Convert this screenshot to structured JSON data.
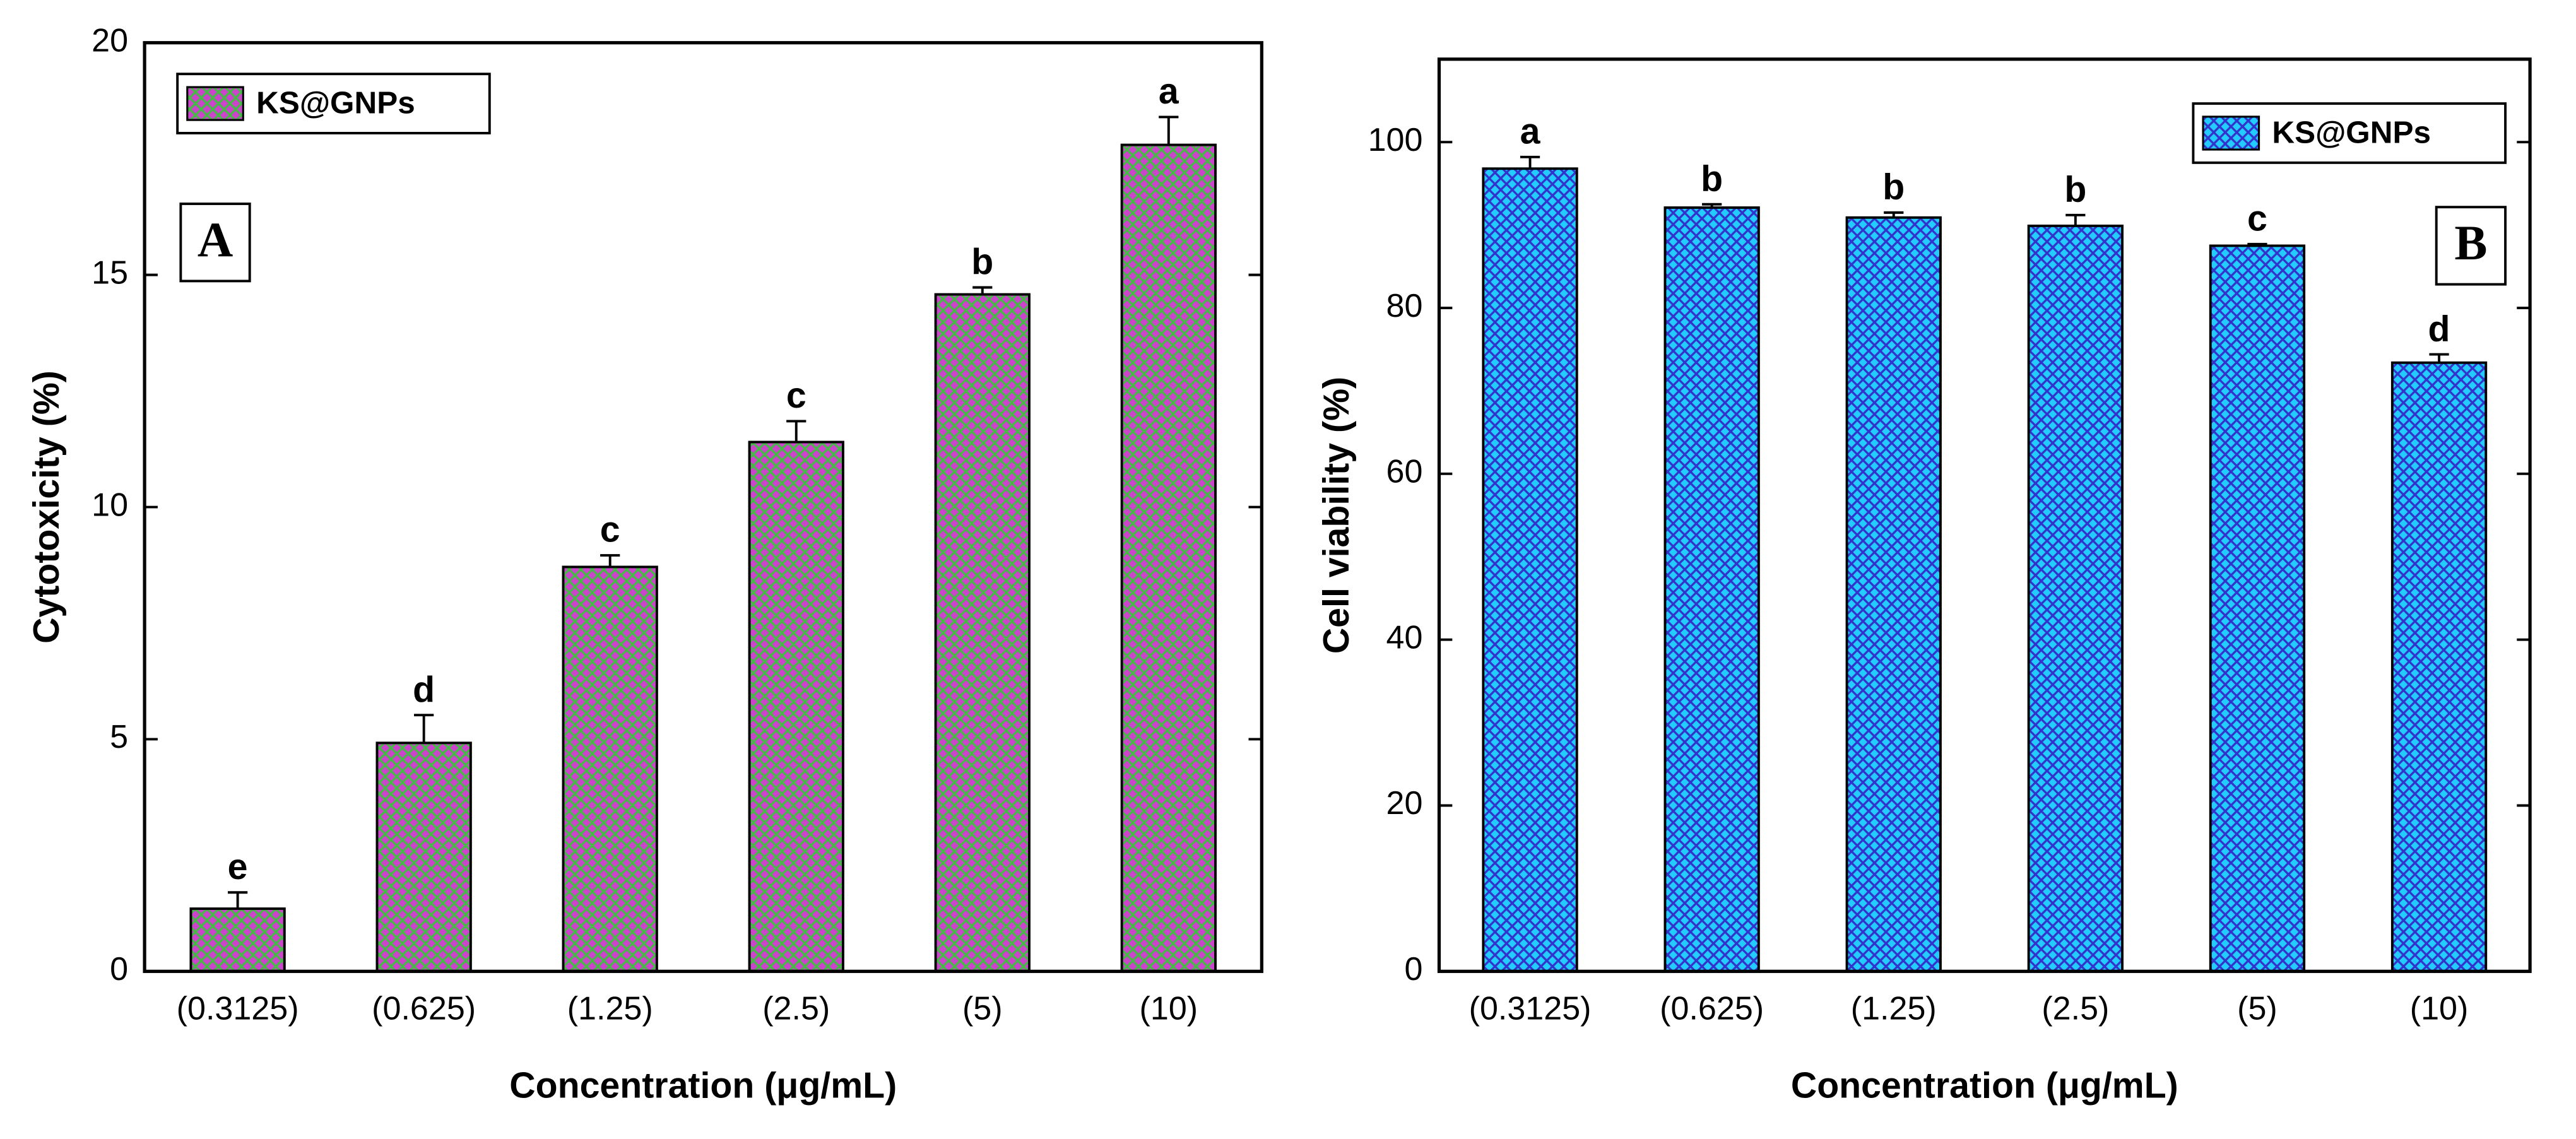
{
  "chart_data": [
    {
      "type": "bar",
      "panel_label": "A",
      "x_label": "Concentration (μg/mL)",
      "y_label": "Cytotoxicity (%)",
      "categories": [
        "(0.3125)",
        "(0.625)",
        "(1.25)",
        "(2.5)",
        "(5)",
        "(10)"
      ],
      "series": [
        {
          "name": "KS@GNPs",
          "color": "#cc44cc",
          "hatch_color": "#44bb44",
          "values": [
            1.35,
            4.92,
            8.71,
            11.4,
            14.58,
            17.8
          ],
          "errors": [
            0.35,
            0.6,
            0.25,
            0.45,
            0.15,
            0.6
          ]
        }
      ],
      "annotations": [
        "e",
        "d",
        "c",
        "c",
        "b",
        "a"
      ],
      "ylim": [
        0,
        20
      ],
      "yticks": [
        0,
        5,
        10,
        15,
        20
      ],
      "legend": "upper left"
    },
    {
      "type": "bar",
      "panel_label": "B",
      "x_label": "Concentration (μg/mL)",
      "y_label": "Cell viability (%)",
      "categories": [
        "(0.3125)",
        "(0.625)",
        "(1.25)",
        "(2.5)",
        "(5)",
        "(10)"
      ],
      "series": [
        {
          "name": "KS@GNPs",
          "color": "#22ccff",
          "hatch_color": "#3333cc",
          "values": [
            96.8,
            92.1,
            90.9,
            89.9,
            87.5,
            73.4
          ],
          "errors": [
            1.4,
            0.4,
            0.6,
            1.3,
            0.2,
            1.0
          ]
        }
      ],
      "annotations": [
        "a",
        "b",
        "b",
        "b",
        "c",
        "d"
      ],
      "ylim": [
        0,
        110
      ],
      "yticks": [
        0,
        20,
        40,
        60,
        80,
        100
      ],
      "legend": "upper right"
    }
  ]
}
